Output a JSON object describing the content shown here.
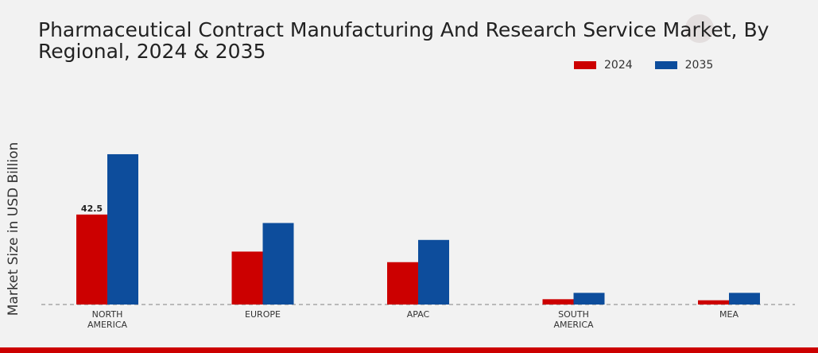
{
  "chart_data": {
    "type": "bar",
    "title": "Pharmaceutical Contract Manufacturing And Research Service Market, By Regional, 2024 & 2035",
    "ylabel": "Market Size in USD Billion",
    "xlabel": "",
    "categories": [
      "NORTH\nAMERICA",
      "EUROPE",
      "APAC",
      "SOUTH\nAMERICA",
      "MEA"
    ],
    "series": [
      {
        "name": "2024",
        "color": "#cc0000",
        "values": [
          42.5,
          25.0,
          20.0,
          2.5,
          2.0
        ]
      },
      {
        "name": "2035",
        "color": "#0d4d9c",
        "values": [
          71.0,
          38.5,
          30.5,
          5.5,
          5.5
        ]
      }
    ],
    "data_labels": [
      {
        "series": 0,
        "index": 0,
        "text": "42.5"
      }
    ],
    "ylim": [
      0,
      80
    ],
    "grid": false,
    "legend_position": "top-right"
  }
}
